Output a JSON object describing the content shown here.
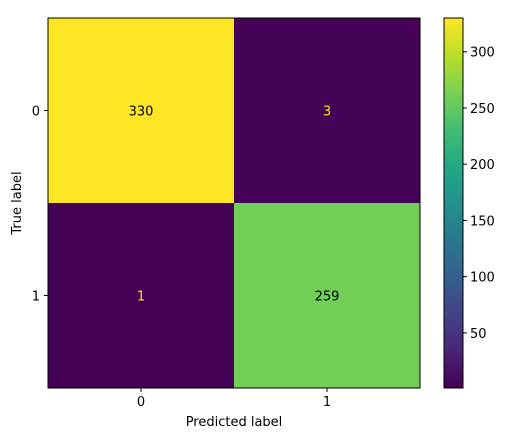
{
  "chart_data": {
    "type": "heatmap",
    "xlabel": "Predicted label",
    "ylabel": "True label",
    "x_categories": [
      "0",
      "1"
    ],
    "y_categories": [
      "0",
      "1"
    ],
    "matrix": [
      [
        330,
        3
      ],
      [
        1,
        259
      ]
    ],
    "colormap": "viridis",
    "colorbar": {
      "range": [
        1,
        330
      ],
      "ticks": [
        "50",
        "100",
        "150",
        "200",
        "250",
        "300"
      ]
    },
    "grid": false
  }
}
